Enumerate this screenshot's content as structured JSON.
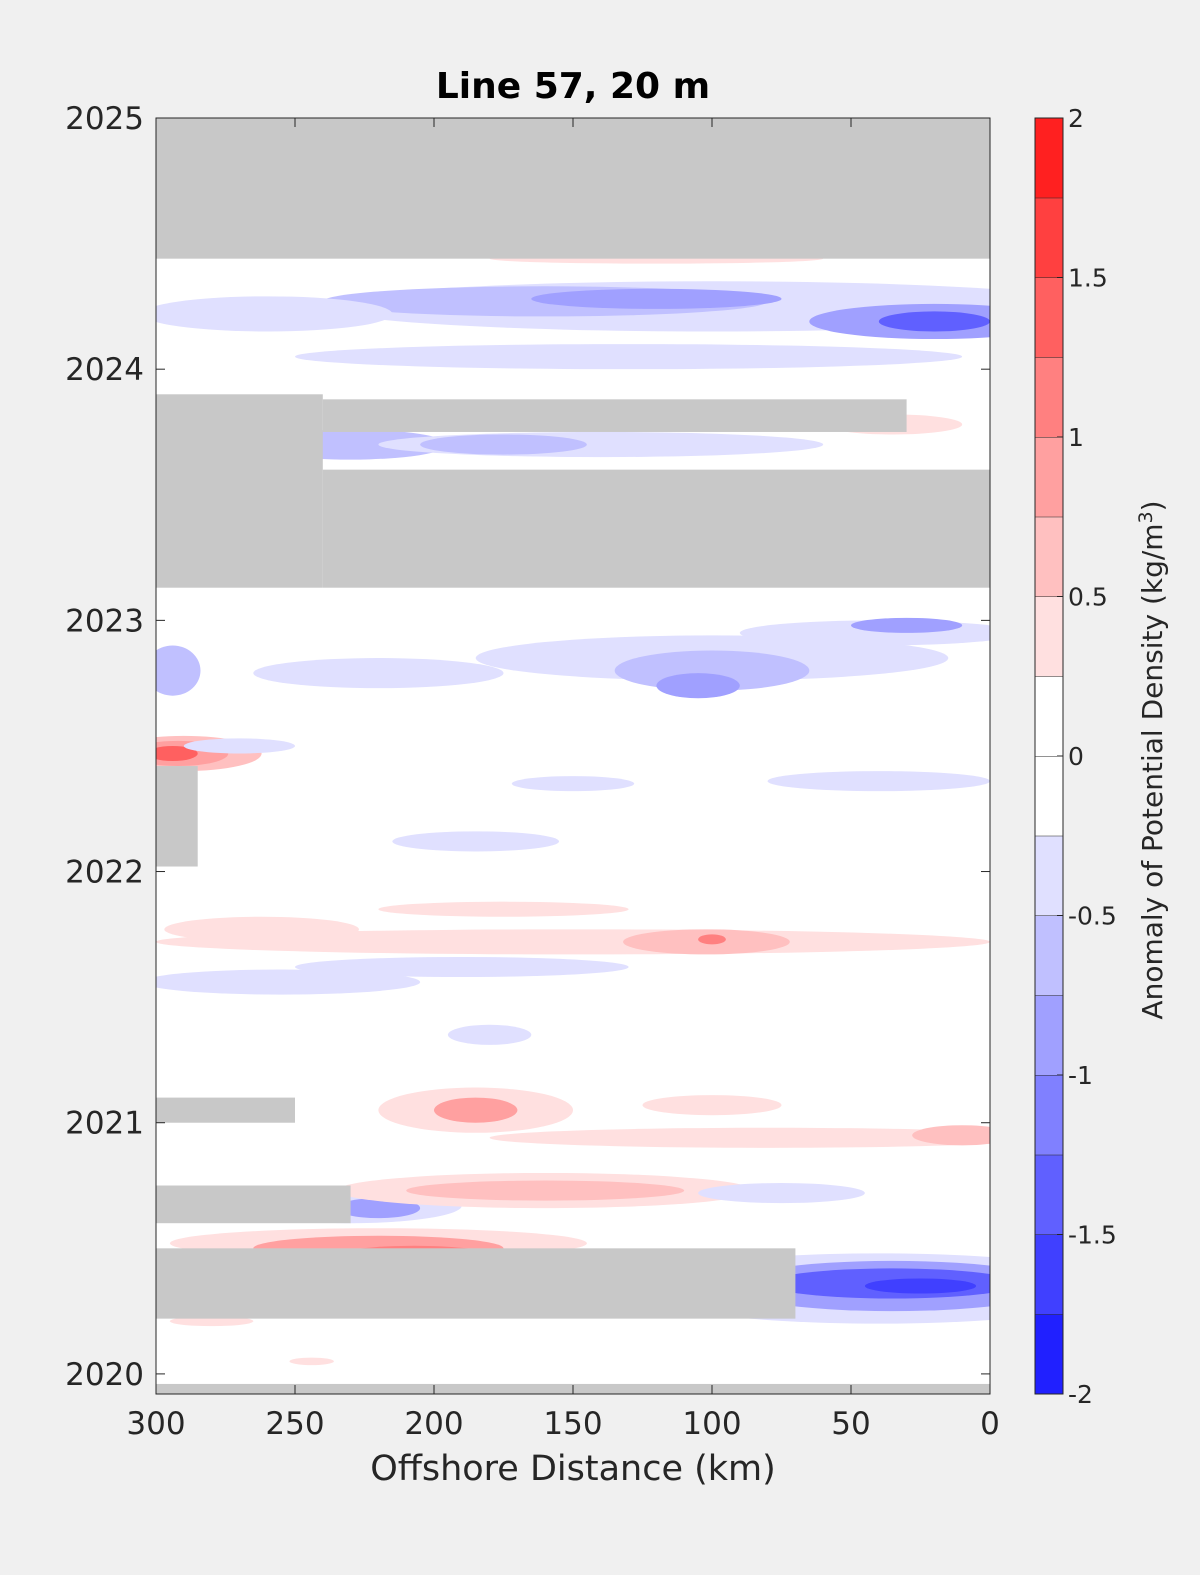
{
  "chart_data": {
    "type": "heatmap",
    "title": "Line 57, 20 m",
    "xlabel": "Offshore Distance (km)",
    "xlim": [
      300,
      0
    ],
    "xticks": [
      300,
      250,
      200,
      150,
      100,
      50,
      0
    ],
    "ylim": [
      2019.92,
      2025
    ],
    "yticks": [
      2020,
      2021,
      2022,
      2023,
      2024,
      2025
    ],
    "colorbar": {
      "label_main": "Anomaly of Potential Density (kg/m",
      "label_sup": "3",
      "label_end": ")",
      "ticks": [
        -2,
        -1.5,
        -1,
        -0.5,
        0,
        0.5,
        1,
        1.5,
        2
      ],
      "levels": [
        -2,
        -1.75,
        -1.5,
        -1.25,
        -1,
        -0.75,
        -0.5,
        -0.25,
        0,
        0.25,
        0.5,
        0.75,
        1,
        1.25,
        1.5,
        1.75,
        2
      ],
      "colors": [
        "#0000ff",
        "#2020ff",
        "#4040ff",
        "#6060ff",
        "#8080ff",
        "#a0a0ff",
        "#c0c0ff",
        "#e0e0ff",
        "#ffffff",
        "#ffffff",
        "#ffe0e0",
        "#ffc0c0",
        "#ffa0a0",
        "#ff8080",
        "#ff6060",
        "#ff4040",
        "#ff2020",
        "#ff0000"
      ]
    },
    "missing_color": "#c8c8c8",
    "missing_data": [
      {
        "x": [
          300,
          0
        ],
        "y": [
          2024.44,
          2025
        ]
      },
      {
        "x": [
          300,
          240
        ],
        "y": [
          2023.13,
          2023.9
        ]
      },
      {
        "x": [
          240,
          0
        ],
        "y": [
          2023.13,
          2023.6
        ]
      },
      {
        "x": [
          240,
          30
        ],
        "y": [
          2023.75,
          2023.88
        ]
      },
      {
        "x": [
          300,
          285
        ],
        "y": [
          2022.02,
          2022.42
        ]
      },
      {
        "x": [
          300,
          250
        ],
        "y": [
          2021.0,
          2021.1
        ]
      },
      {
        "x": [
          300,
          230
        ],
        "y": [
          2020.6,
          2020.75
        ]
      },
      {
        "x": [
          300,
          70
        ],
        "y": [
          2020.22,
          2020.5
        ]
      },
      {
        "x": [
          300,
          0
        ],
        "y": [
          2019.92,
          2019.96
        ]
      }
    ],
    "anomaly_features": [
      {
        "x": 100,
        "y": 2024.25,
        "rx": 140,
        "ry": 0.1,
        "value": -0.4
      },
      {
        "x": 160,
        "y": 2024.27,
        "rx": 80,
        "ry": 0.06,
        "value": -0.7
      },
      {
        "x": 120,
        "y": 2024.28,
        "rx": 45,
        "ry": 0.04,
        "value": -0.9
      },
      {
        "x": 20,
        "y": 2024.19,
        "rx": 45,
        "ry": 0.07,
        "value": -0.8
      },
      {
        "x": 20,
        "y": 2024.19,
        "rx": 20,
        "ry": 0.04,
        "value": -1.3
      },
      {
        "x": 260,
        "y": 2024.22,
        "rx": 45,
        "ry": 0.07,
        "value": -0.4
      },
      {
        "x": 130,
        "y": 2024.05,
        "rx": 120,
        "ry": 0.05,
        "value": -0.4
      },
      {
        "x": 120,
        "y": 2024.44,
        "rx": 60,
        "ry": 0.02,
        "value": 0.4
      },
      {
        "x": 252,
        "y": 2023.7,
        "rx": 22,
        "ry": 0.05,
        "value": -1.2
      },
      {
        "x": 230,
        "y": 2023.7,
        "rx": 35,
        "ry": 0.06,
        "value": -0.6
      },
      {
        "x": 140,
        "y": 2023.7,
        "rx": 80,
        "ry": 0.05,
        "value": -0.4
      },
      {
        "x": 175,
        "y": 2023.7,
        "rx": 30,
        "ry": 0.04,
        "value": -0.65
      },
      {
        "x": 35,
        "y": 2023.78,
        "rx": 25,
        "ry": 0.04,
        "value": 0.4
      },
      {
        "x": 100,
        "y": 2022.85,
        "rx": 85,
        "ry": 0.09,
        "value": -0.45
      },
      {
        "x": 100,
        "y": 2022.8,
        "rx": 35,
        "ry": 0.08,
        "value": -0.75
      },
      {
        "x": 105,
        "y": 2022.74,
        "rx": 15,
        "ry": 0.05,
        "value": -1.0
      },
      {
        "x": 40,
        "y": 2022.95,
        "rx": 50,
        "ry": 0.05,
        "value": -0.5
      },
      {
        "x": 30,
        "y": 2022.98,
        "rx": 20,
        "ry": 0.03,
        "value": -0.8
      },
      {
        "x": 220,
        "y": 2022.79,
        "rx": 45,
        "ry": 0.06,
        "value": -0.4
      },
      {
        "x": 294,
        "y": 2022.8,
        "rx": 10,
        "ry": 0.1,
        "value": -0.6
      },
      {
        "x": 290,
        "y": 2022.47,
        "rx": 28,
        "ry": 0.07,
        "value": 0.55
      },
      {
        "x": 292,
        "y": 2022.47,
        "rx": 18,
        "ry": 0.05,
        "value": 0.9
      },
      {
        "x": 294,
        "y": 2022.47,
        "rx": 9,
        "ry": 0.03,
        "value": 1.3
      },
      {
        "x": 270,
        "y": 2022.5,
        "rx": 20,
        "ry": 0.03,
        "value": -0.35
      },
      {
        "x": 150,
        "y": 2022.35,
        "rx": 22,
        "ry": 0.03,
        "value": -0.35
      },
      {
        "x": 40,
        "y": 2022.36,
        "rx": 40,
        "ry": 0.04,
        "value": -0.35
      },
      {
        "x": 185,
        "y": 2022.12,
        "rx": 30,
        "ry": 0.04,
        "value": -0.35
      },
      {
        "x": 175,
        "y": 2021.85,
        "rx": 45,
        "ry": 0.03,
        "value": 0.35
      },
      {
        "x": 190,
        "y": 2021.62,
        "rx": 60,
        "ry": 0.04,
        "value": -0.35
      },
      {
        "x": 150,
        "y": 2021.72,
        "rx": 150,
        "ry": 0.05,
        "value": 0.35
      },
      {
        "x": 262,
        "y": 2021.77,
        "rx": 35,
        "ry": 0.05,
        "value": 0.35
      },
      {
        "x": 102,
        "y": 2021.72,
        "rx": 30,
        "ry": 0.05,
        "value": 0.6
      },
      {
        "x": 100,
        "y": 2021.73,
        "rx": 5,
        "ry": 0.02,
        "value": 1.1
      },
      {
        "x": 255,
        "y": 2021.56,
        "rx": 50,
        "ry": 0.05,
        "value": -0.35
      },
      {
        "x": 180,
        "y": 2021.35,
        "rx": 15,
        "ry": 0.04,
        "value": -0.4
      },
      {
        "x": 185,
        "y": 2021.05,
        "rx": 35,
        "ry": 0.09,
        "value": 0.45
      },
      {
        "x": 185,
        "y": 2021.05,
        "rx": 15,
        "ry": 0.05,
        "value": 0.85
      },
      {
        "x": 100,
        "y": 2021.07,
        "rx": 25,
        "ry": 0.04,
        "value": 0.35
      },
      {
        "x": 80,
        "y": 2020.94,
        "rx": 100,
        "ry": 0.04,
        "value": 0.35
      },
      {
        "x": 10,
        "y": 2020.95,
        "rx": 18,
        "ry": 0.04,
        "value": 0.6
      },
      {
        "x": 230,
        "y": 2020.67,
        "rx": 40,
        "ry": 0.07,
        "value": -0.5
      },
      {
        "x": 220,
        "y": 2020.66,
        "rx": 15,
        "ry": 0.04,
        "value": -1.0
      },
      {
        "x": 160,
        "y": 2020.73,
        "rx": 75,
        "ry": 0.07,
        "value": 0.4
      },
      {
        "x": 160,
        "y": 2020.73,
        "rx": 50,
        "ry": 0.04,
        "value": 0.7
      },
      {
        "x": 75,
        "y": 2020.72,
        "rx": 30,
        "ry": 0.04,
        "value": -0.35
      },
      {
        "x": 220,
        "y": 2020.52,
        "rx": 75,
        "ry": 0.06,
        "value": 0.45
      },
      {
        "x": 220,
        "y": 2020.5,
        "rx": 45,
        "ry": 0.05,
        "value": 0.8
      },
      {
        "x": 207,
        "y": 2020.48,
        "rx": 25,
        "ry": 0.03,
        "value": 1.1
      },
      {
        "x": 40,
        "y": 2020.34,
        "rx": 90,
        "ry": 0.14,
        "value": -0.45
      },
      {
        "x": 35,
        "y": 2020.35,
        "rx": 60,
        "ry": 0.1,
        "value": -0.9
      },
      {
        "x": 35,
        "y": 2020.36,
        "rx": 45,
        "ry": 0.06,
        "value": -1.35
      },
      {
        "x": 25,
        "y": 2020.35,
        "rx": 20,
        "ry": 0.03,
        "value": -1.6
      },
      {
        "x": 280,
        "y": 2020.21,
        "rx": 15,
        "ry": 0.02,
        "value": 0.3
      },
      {
        "x": 244,
        "y": 2020.05,
        "rx": 8,
        "ry": 0.015,
        "value": 0.3
      }
    ]
  }
}
